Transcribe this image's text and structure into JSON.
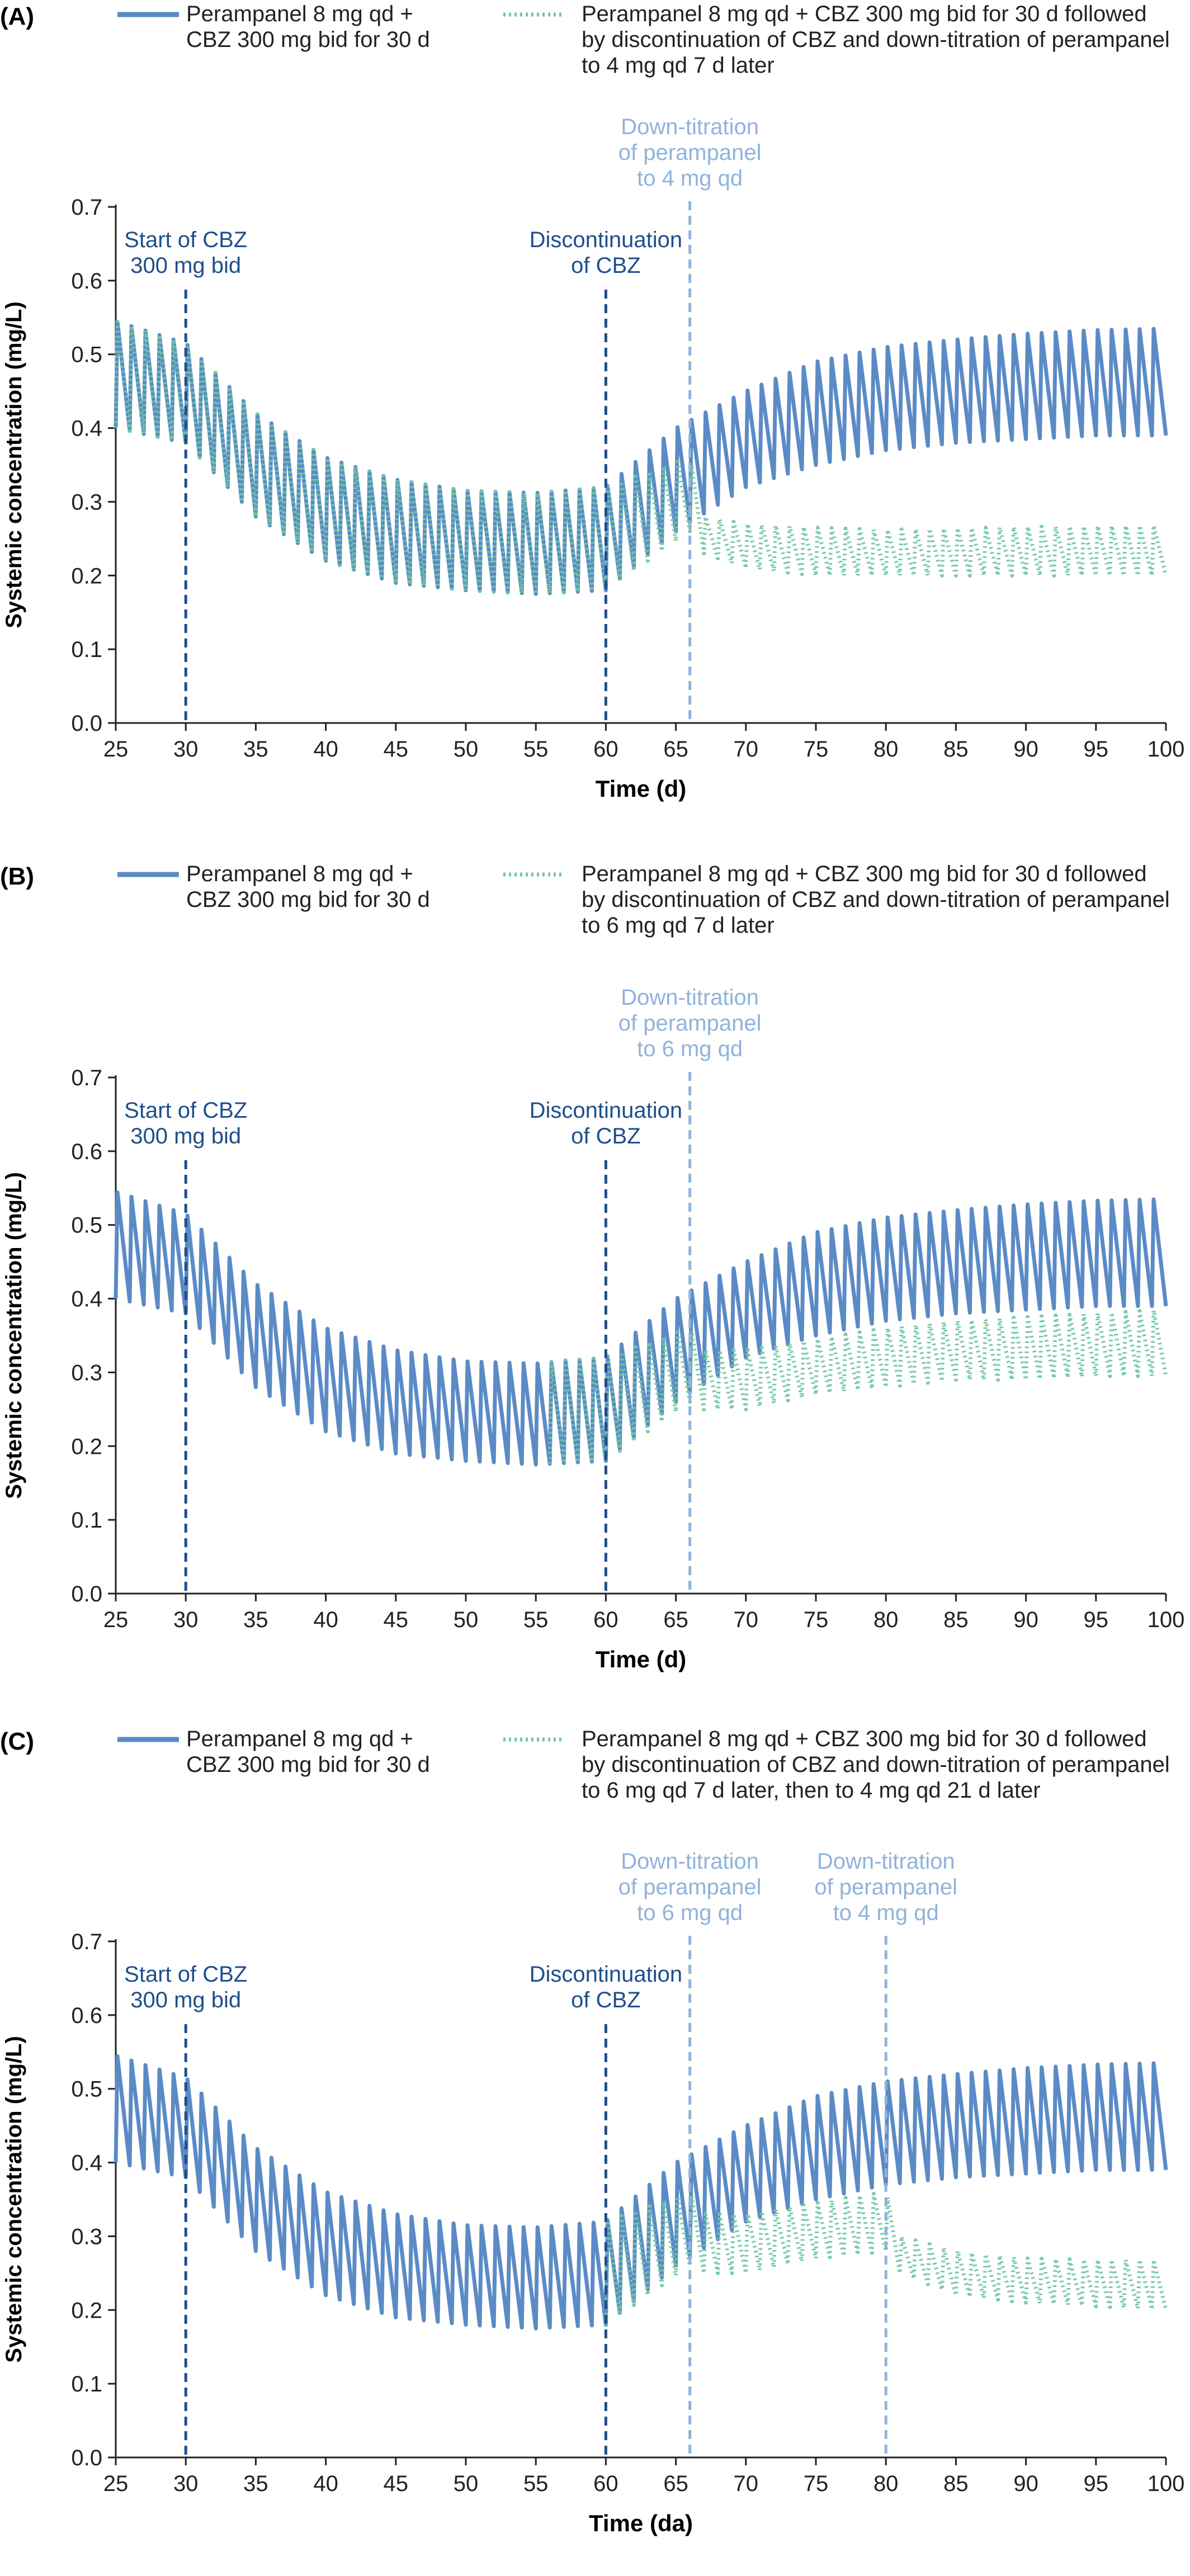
{
  "chart_data": [
    {
      "type": "line",
      "panel_label": "(A)",
      "xlabel": "Time (d)",
      "ylabel": "Systemic concentration (mg/L)",
      "xlim": [
        25,
        100
      ],
      "ylim": [
        0,
        0.7
      ],
      "xticks": [
        25,
        30,
        35,
        40,
        45,
        50,
        55,
        60,
        65,
        70,
        75,
        80,
        85,
        90,
        95,
        100
      ],
      "yticks": [
        "0.0",
        "0.1",
        "0.2",
        "0.3",
        "0.4",
        "0.5",
        "0.6",
        "0.7"
      ],
      "legend_position": "top",
      "series": [
        {
          "name_lines": [
            "Perampanel 8 mg qd +",
            "CBZ 300 mg bid for 30 d"
          ],
          "style": "solid",
          "color": "#5b8bc6",
          "dose_interval_days": 1,
          "envelope_x": [
            25,
            30,
            35,
            40,
            45,
            50,
            55,
            60,
            65,
            70,
            75,
            80,
            85,
            90,
            95,
            100
          ],
          "peak": [
            0.545,
            0.515,
            0.42,
            0.36,
            0.33,
            0.315,
            0.312,
            0.32,
            0.4,
            0.45,
            0.49,
            0.51,
            0.52,
            0.528,
            0.533,
            0.535
          ],
          "trough": [
            0.4,
            0.38,
            0.28,
            0.22,
            0.19,
            0.18,
            0.175,
            0.18,
            0.26,
            0.32,
            0.35,
            0.37,
            0.38,
            0.385,
            0.39,
            0.39
          ]
        },
        {
          "name_lines": [
            "Perampanel 8 mg qd + CBZ 300 mg bid for 30 d  followed",
            "by discontinuation of CBZ and down-titration of perampanel",
            "to 4 mg qd 7 d later"
          ],
          "style": "dotted",
          "color": "#72c7a3",
          "dose_interval_days": 1,
          "envelope_x": [
            25,
            30,
            35,
            40,
            45,
            50,
            55,
            60,
            63,
            66,
            67,
            70,
            75,
            80,
            85,
            90,
            95,
            100
          ],
          "peak": [
            0.545,
            0.515,
            0.42,
            0.36,
            0.33,
            0.315,
            0.312,
            0.32,
            0.34,
            0.36,
            0.28,
            0.27,
            0.265,
            0.262,
            0.264,
            0.266,
            0.267,
            0.268
          ],
          "trough": [
            0.4,
            0.38,
            0.28,
            0.22,
            0.19,
            0.18,
            0.175,
            0.18,
            0.22,
            0.26,
            0.23,
            0.21,
            0.2,
            0.2,
            0.2,
            0.2,
            0.2,
            0.2
          ]
        }
      ],
      "annotations": [
        {
          "x": 30,
          "lines": [
            "Start of CBZ",
            "300 mg bid"
          ],
          "style": "dashed",
          "color": "#1f4e8c"
        },
        {
          "x": 60,
          "lines": [
            "Discontinuation",
            "of CBZ"
          ],
          "style": "dashed",
          "color": "#1f4e8c"
        },
        {
          "x": 66,
          "lines": [
            "Down-titration",
            "of perampanel",
            "to 4 mg qd"
          ],
          "style": "dashed",
          "color": "#8fb3dc"
        }
      ]
    },
    {
      "type": "line",
      "panel_label": "(B)",
      "xlabel": "Time (d)",
      "ylabel": "Systemic concentration (mg/L)",
      "xlim": [
        25,
        100
      ],
      "ylim": [
        0,
        0.7
      ],
      "xticks": [
        25,
        30,
        35,
        40,
        45,
        50,
        55,
        60,
        65,
        70,
        75,
        80,
        85,
        90,
        95,
        100
      ],
      "yticks": [
        "0.0",
        "0.1",
        "0.2",
        "0.3",
        "0.4",
        "0.5",
        "0.6",
        "0.7"
      ],
      "legend_position": "top",
      "series": [
        {
          "name_lines": [
            "Perampanel 8 mg qd +",
            "CBZ 300 mg bid for 30 d"
          ],
          "style": "solid",
          "color": "#5b8bc6",
          "dose_interval_days": 1,
          "envelope_x": [
            25,
            30,
            35,
            40,
            45,
            50,
            55,
            60,
            65,
            70,
            75,
            80,
            85,
            90,
            95,
            100
          ],
          "peak": [
            0.545,
            0.515,
            0.42,
            0.36,
            0.33,
            0.315,
            0.312,
            0.32,
            0.4,
            0.45,
            0.49,
            0.51,
            0.52,
            0.528,
            0.533,
            0.535
          ],
          "trough": [
            0.4,
            0.38,
            0.28,
            0.22,
            0.19,
            0.18,
            0.175,
            0.18,
            0.26,
            0.32,
            0.35,
            0.37,
            0.38,
            0.385,
            0.39,
            0.39
          ]
        },
        {
          "name_lines": [
            "Perampanel 8 mg qd + CBZ 300 mg bid for 30 d followed",
            "by discontinuation of CBZ and down-titration of perampanel",
            "to 6 mg qd 7 d later"
          ],
          "style": "dotted",
          "color": "#72c7a3",
          "dose_interval_days": 1,
          "envelope_x": [
            56,
            60,
            63,
            66,
            67,
            70,
            75,
            80,
            85,
            90,
            95,
            100
          ],
          "peak": [
            0.315,
            0.32,
            0.34,
            0.36,
            0.33,
            0.33,
            0.345,
            0.36,
            0.37,
            0.375,
            0.38,
            0.385
          ],
          "trough": [
            0.176,
            0.18,
            0.22,
            0.26,
            0.25,
            0.25,
            0.27,
            0.28,
            0.29,
            0.29,
            0.295,
            0.295
          ]
        }
      ],
      "annotations": [
        {
          "x": 30,
          "lines": [
            "Start of CBZ",
            "300 mg bid"
          ],
          "style": "dashed",
          "color": "#1f4e8c"
        },
        {
          "x": 60,
          "lines": [
            "Discontinuation",
            "of CBZ"
          ],
          "style": "dashed",
          "color": "#1f4e8c"
        },
        {
          "x": 66,
          "lines": [
            "Down-titration",
            "of perampanel",
            "to 6 mg qd"
          ],
          "style": "dashed",
          "color": "#8fb3dc"
        }
      ]
    },
    {
      "type": "line",
      "panel_label": "(C)",
      "xlabel": "Time (da)",
      "ylabel": "Systemic concentration (mg/L)",
      "xlim": [
        25,
        100
      ],
      "ylim": [
        0,
        0.7
      ],
      "xticks": [
        25,
        30,
        35,
        40,
        45,
        50,
        55,
        60,
        65,
        70,
        75,
        80,
        85,
        90,
        95,
        100
      ],
      "yticks": [
        "0.0",
        "0.1",
        "0.2",
        "0.3",
        "0.4",
        "0.5",
        "0.6",
        "0.7"
      ],
      "legend_position": "top",
      "series": [
        {
          "name_lines": [
            "Perampanel 8 mg qd +",
            "CBZ 300 mg bid for 30 d"
          ],
          "style": "solid",
          "color": "#5b8bc6",
          "dose_interval_days": 1,
          "envelope_x": [
            25,
            30,
            35,
            40,
            45,
            50,
            55,
            60,
            65,
            70,
            75,
            80,
            85,
            90,
            95,
            100
          ],
          "peak": [
            0.545,
            0.515,
            0.42,
            0.36,
            0.33,
            0.315,
            0.312,
            0.32,
            0.4,
            0.45,
            0.49,
            0.51,
            0.52,
            0.528,
            0.533,
            0.535
          ],
          "trough": [
            0.4,
            0.38,
            0.28,
            0.22,
            0.19,
            0.18,
            0.175,
            0.18,
            0.26,
            0.32,
            0.35,
            0.37,
            0.38,
            0.385,
            0.39,
            0.39
          ]
        },
        {
          "name_lines": [
            "Perampanel 8 mg qd + CBZ 300 mg bid for 30 d followed",
            "by discontinuation of CBZ and down-titration of perampanel",
            "to 6 mg qd 7 d later, then to 4 mg qd 21 d later"
          ],
          "style": "dotted",
          "color": "#72c7a3",
          "dose_interval_days": 1,
          "envelope_x": [
            60,
            63,
            66,
            67,
            70,
            75,
            78,
            80,
            81,
            85,
            90,
            95,
            100
          ],
          "peak": [
            0.32,
            0.34,
            0.36,
            0.33,
            0.33,
            0.345,
            0.355,
            0.36,
            0.3,
            0.28,
            0.27,
            0.268,
            0.268
          ],
          "trough": [
            0.18,
            0.22,
            0.26,
            0.25,
            0.25,
            0.27,
            0.275,
            0.28,
            0.25,
            0.22,
            0.21,
            0.205,
            0.2
          ]
        }
      ],
      "annotations": [
        {
          "x": 30,
          "lines": [
            "Start of CBZ",
            "300 mg bid"
          ],
          "style": "dashed",
          "color": "#1f4e8c"
        },
        {
          "x": 60,
          "lines": [
            "Discontinuation",
            "of CBZ"
          ],
          "style": "dashed",
          "color": "#1f4e8c"
        },
        {
          "x": 66,
          "lines": [
            "Down-titration",
            "of perampanel",
            "to 6 mg qd"
          ],
          "style": "dashed",
          "color": "#8fb3dc"
        },
        {
          "x": 80,
          "lines": [
            "Down-titration",
            "of perampanel",
            "to 4 mg qd"
          ],
          "style": "dashed",
          "color": "#8fb3dc"
        }
      ]
    }
  ]
}
